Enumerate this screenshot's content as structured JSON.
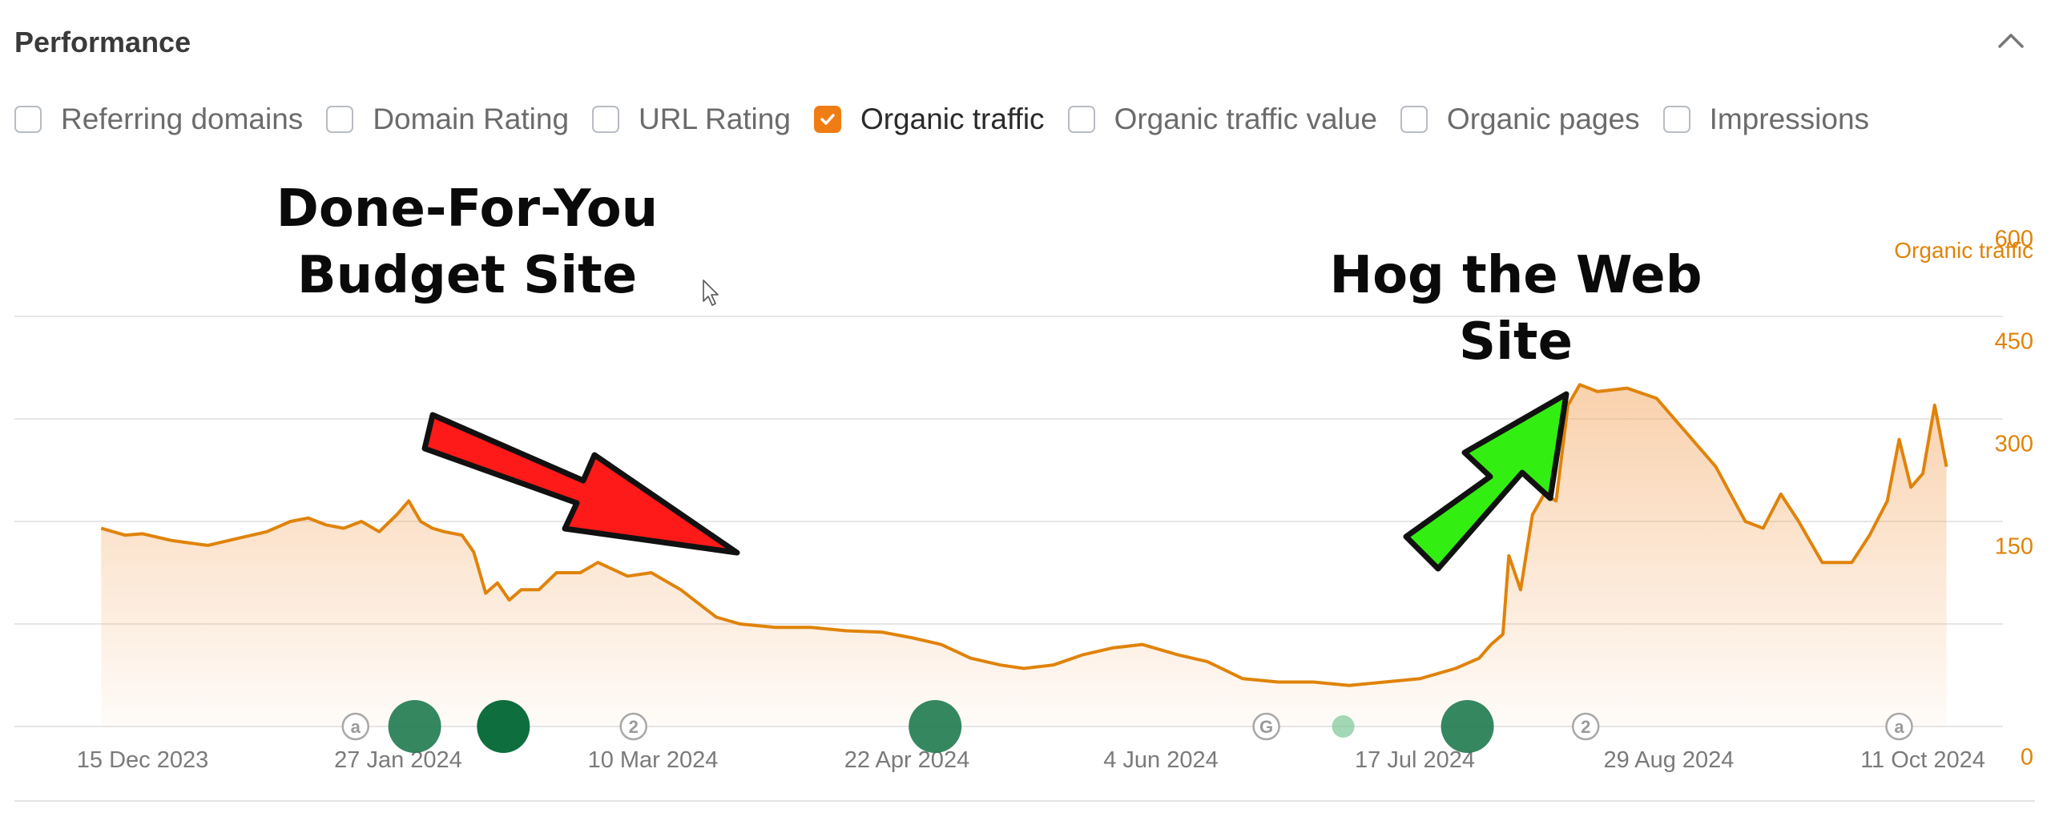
{
  "header": {
    "title": "Performance",
    "collapse_icon": "chevron-up-icon"
  },
  "metrics": [
    {
      "label": "Referring domains",
      "checked": false
    },
    {
      "label": "Domain Rating",
      "checked": false
    },
    {
      "label": "URL Rating",
      "checked": false
    },
    {
      "label": "Organic traffic",
      "checked": true
    },
    {
      "label": "Organic traffic value",
      "checked": false
    },
    {
      "label": "Organic pages",
      "checked": false
    },
    {
      "label": "Impressions",
      "checked": false
    }
  ],
  "colors": {
    "accent": "#ef7d14",
    "line": "#e0830a",
    "red_arrow": "#ff1a1a",
    "green_arrow": "#33ee11",
    "event_marker": "#1f7a4f"
  },
  "chart_data": {
    "type": "area",
    "series": [
      {
        "name": "Organic traffic",
        "x": [
          "2023-12-08",
          "2023-12-12",
          "2023-12-15",
          "2023-12-20",
          "2023-12-26",
          "2023-12-31",
          "2024-01-05",
          "2024-01-09",
          "2024-01-12",
          "2024-01-15",
          "2024-01-18",
          "2024-01-21",
          "2024-01-24",
          "2024-01-27",
          "2024-01-29",
          "2024-01-31",
          "2024-02-02",
          "2024-02-04",
          "2024-02-07",
          "2024-02-09",
          "2024-02-11",
          "2024-02-13",
          "2024-02-15",
          "2024-02-17",
          "2024-02-20",
          "2024-02-23",
          "2024-02-27",
          "2024-03-01",
          "2024-03-06",
          "2024-03-10",
          "2024-03-15",
          "2024-03-18",
          "2024-03-21",
          "2024-03-25",
          "2024-03-31",
          "2024-04-06",
          "2024-04-12",
          "2024-04-18",
          "2024-04-23",
          "2024-04-28",
          "2024-05-03",
          "2024-05-08",
          "2024-05-12",
          "2024-05-17",
          "2024-05-22",
          "2024-05-27",
          "2024-06-01",
          "2024-06-07",
          "2024-06-12",
          "2024-06-18",
          "2024-06-24",
          "2024-06-30",
          "2024-07-06",
          "2024-07-12",
          "2024-07-18",
          "2024-07-24",
          "2024-07-28",
          "2024-07-30",
          "2024-08-01",
          "2024-08-02",
          "2024-08-04",
          "2024-08-06",
          "2024-08-08",
          "2024-08-10",
          "2024-08-12",
          "2024-08-14",
          "2024-08-17",
          "2024-08-22",
          "2024-08-27",
          "2024-09-01",
          "2024-09-06",
          "2024-09-11",
          "2024-09-14",
          "2024-09-17",
          "2024-09-20",
          "2024-09-24",
          "2024-09-29",
          "2024-10-02",
          "2024-10-05",
          "2024-10-07",
          "2024-10-09",
          "2024-10-11",
          "2024-10-13",
          "2024-10-15"
        ],
        "values": [
          290,
          280,
          282,
          272,
          265,
          275,
          285,
          300,
          305,
          295,
          290,
          300,
          285,
          310,
          330,
          300,
          290,
          285,
          280,
          255,
          195,
          210,
          185,
          200,
          200,
          225,
          225,
          240,
          220,
          225,
          200,
          180,
          160,
          150,
          145,
          145,
          140,
          138,
          130,
          120,
          100,
          90,
          85,
          90,
          105,
          115,
          120,
          105,
          95,
          70,
          65,
          65,
          60,
          65,
          70,
          85,
          100,
          120,
          135,
          250,
          200,
          310,
          340,
          330,
          470,
          500,
          490,
          495,
          480,
          430,
          380,
          300,
          290,
          340,
          300,
          240,
          240,
          280,
          330,
          420,
          350,
          370,
          470,
          380
        ]
      }
    ],
    "y_axis": {
      "title": "Organic traffic",
      "ticks": [
        "600",
        "450",
        "300",
        "150",
        "0"
      ],
      "ylim": [
        0,
        600
      ],
      "position": "right"
    },
    "x_axis": {
      "ticks": [
        "15 Dec 2023",
        "27 Jan 2024",
        "10 Mar 2024",
        "22 Apr 2024",
        "4 Jun 2024",
        "17 Jul 2024",
        "29 Aug 2024",
        "11 Oct 2024"
      ]
    },
    "grid": true,
    "annotations": [
      {
        "lines": [
          "Done-For-You",
          "Budget Site"
        ]
      },
      {
        "lines": [
          "Hog the Web",
          "Site"
        ]
      }
    ],
    "event_markers": [
      {
        "date": "2024-01-20",
        "kind": "letter",
        "label": "a"
      },
      {
        "date": "2024-01-30",
        "kind": "circle-large"
      },
      {
        "date": "2024-02-14",
        "kind": "circle-large-dark"
      },
      {
        "date": "2024-03-07",
        "kind": "letter",
        "label": "2"
      },
      {
        "date": "2024-04-27",
        "kind": "circle-large"
      },
      {
        "date": "2024-06-22",
        "kind": "letter",
        "label": "G"
      },
      {
        "date": "2024-07-05",
        "kind": "circle-small"
      },
      {
        "date": "2024-07-26",
        "kind": "circle-large"
      },
      {
        "date": "2024-08-15",
        "kind": "letter",
        "label": "2"
      },
      {
        "date": "2024-10-07",
        "kind": "letter",
        "label": "a"
      }
    ]
  }
}
